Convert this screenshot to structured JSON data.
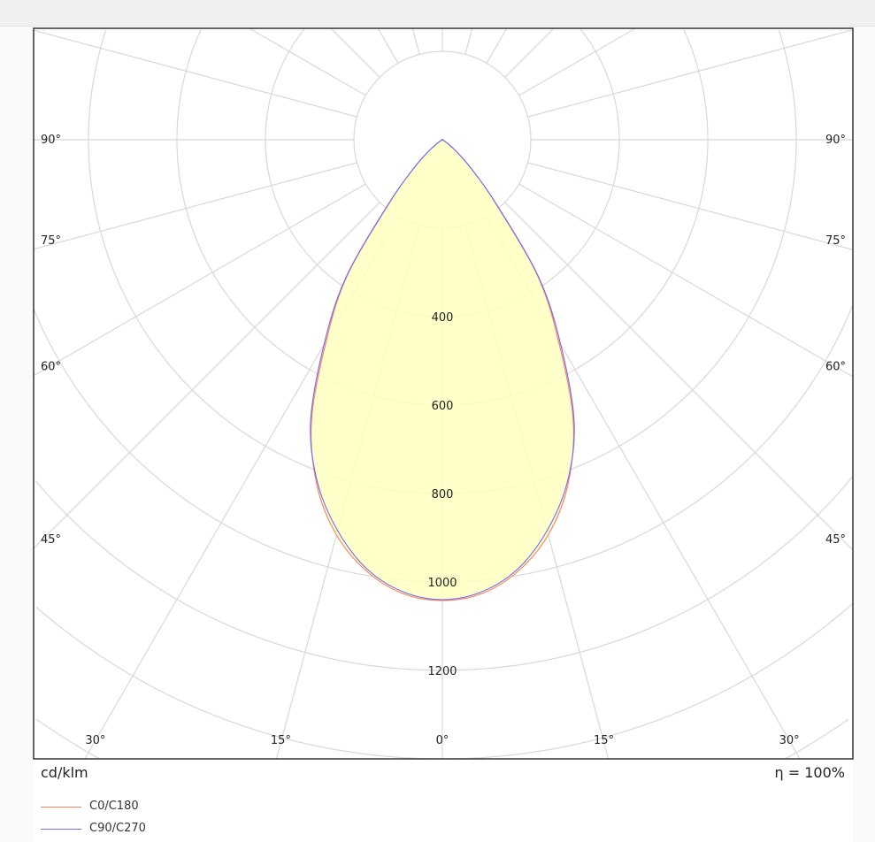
{
  "chart_data": {
    "type": "polar",
    "unit_label": "cd/klm",
    "efficiency_label": "η = 100%",
    "radial_ticks": [
      "400",
      "600",
      "800",
      "1000",
      "1200"
    ],
    "radial_tick_values": [
      400,
      600,
      800,
      1000,
      1200
    ],
    "radial_grid_step": 200,
    "angle_labels_left": [
      "90°",
      "75°",
      "60°",
      "45°",
      "30°",
      "15°"
    ],
    "angle_labels_right": [
      "90°",
      "75°",
      "60°",
      "45°",
      "30°",
      "15°"
    ],
    "angle_label_values": [
      90,
      75,
      60,
      45,
      30,
      15
    ],
    "center_label": "0°",
    "grid": true,
    "legend_placement": "bottom-left",
    "fill_color": "#ffffc0",
    "angles": [
      0,
      5,
      10,
      15,
      20,
      25,
      30,
      35,
      40,
      45,
      50,
      55,
      60,
      90
    ],
    "series": [
      {
        "name": "C0/C180",
        "color": "#ff7b5c",
        "values": [
          1042,
          1030,
          990,
          925,
          830,
          700,
          525,
          375,
          185,
          95,
          42,
          12,
          0,
          0
        ]
      },
      {
        "name": "C90/C270",
        "color": "#6b6bff",
        "values": [
          1040,
          1026,
          985,
          915,
          825,
          705,
          535,
          380,
          190,
          92,
          40,
          12,
          0,
          0
        ]
      }
    ]
  }
}
